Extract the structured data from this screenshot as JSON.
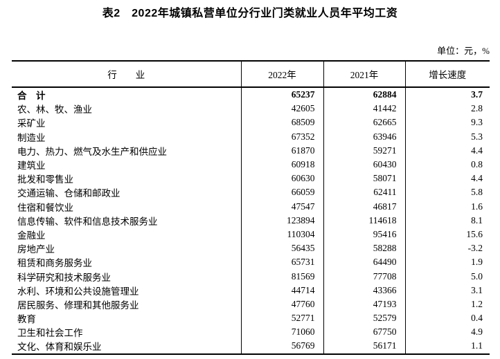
{
  "page": {
    "title": "表2　2022年城镇私营单位分行业门类就业人员年平均工资",
    "unit_note": "单位：元，%"
  },
  "table": {
    "columns": [
      "行　　业",
      "2022年",
      "2021年",
      "增长速度"
    ],
    "rows": [
      {
        "industry": "合　计",
        "y2022": "65237",
        "y2021": "62884",
        "growth": "3.7",
        "bold": true
      },
      {
        "industry": "农、林、牧、渔业",
        "y2022": "42605",
        "y2021": "41442",
        "growth": "2.8",
        "bold": false
      },
      {
        "industry": "采矿业",
        "y2022": "68509",
        "y2021": "62665",
        "growth": "9.3",
        "bold": false
      },
      {
        "industry": "制造业",
        "y2022": "67352",
        "y2021": "63946",
        "growth": "5.3",
        "bold": false
      },
      {
        "industry": "电力、热力、燃气及水生产和供应业",
        "y2022": "61870",
        "y2021": "59271",
        "growth": "4.4",
        "bold": false
      },
      {
        "industry": "建筑业",
        "y2022": "60918",
        "y2021": "60430",
        "growth": "0.8",
        "bold": false
      },
      {
        "industry": "批发和零售业",
        "y2022": "60630",
        "y2021": "58071",
        "growth": "4.4",
        "bold": false
      },
      {
        "industry": "交通运输、仓储和邮政业",
        "y2022": "66059",
        "y2021": "62411",
        "growth": "5.8",
        "bold": false
      },
      {
        "industry": "住宿和餐饮业",
        "y2022": "47547",
        "y2021": "46817",
        "growth": "1.6",
        "bold": false
      },
      {
        "industry": "信息传输、软件和信息技术服务业",
        "y2022": "123894",
        "y2021": "114618",
        "growth": "8.1",
        "bold": false
      },
      {
        "industry": "金融业",
        "y2022": "110304",
        "y2021": "95416",
        "growth": "15.6",
        "bold": false
      },
      {
        "industry": "房地产业",
        "y2022": "56435",
        "y2021": "58288",
        "growth": "-3.2",
        "bold": false
      },
      {
        "industry": "租赁和商务服务业",
        "y2022": "65731",
        "y2021": "64490",
        "growth": "1.9",
        "bold": false
      },
      {
        "industry": "科学研究和技术服务业",
        "y2022": "81569",
        "y2021": "77708",
        "growth": "5.0",
        "bold": false
      },
      {
        "industry": "水利、环境和公共设施管理业",
        "y2022": "44714",
        "y2021": "43366",
        "growth": "3.1",
        "bold": false
      },
      {
        "industry": "居民服务、修理和其他服务业",
        "y2022": "47760",
        "y2021": "47193",
        "growth": "1.2",
        "bold": false
      },
      {
        "industry": "教育",
        "y2022": "52771",
        "y2021": "52579",
        "growth": "0.4",
        "bold": false
      },
      {
        "industry": "卫生和社会工作",
        "y2022": "71060",
        "y2021": "67750",
        "growth": "4.9",
        "bold": false
      },
      {
        "industry": "文化、体育和娱乐业",
        "y2022": "56769",
        "y2021": "56171",
        "growth": "1.1",
        "bold": false
      }
    ]
  }
}
